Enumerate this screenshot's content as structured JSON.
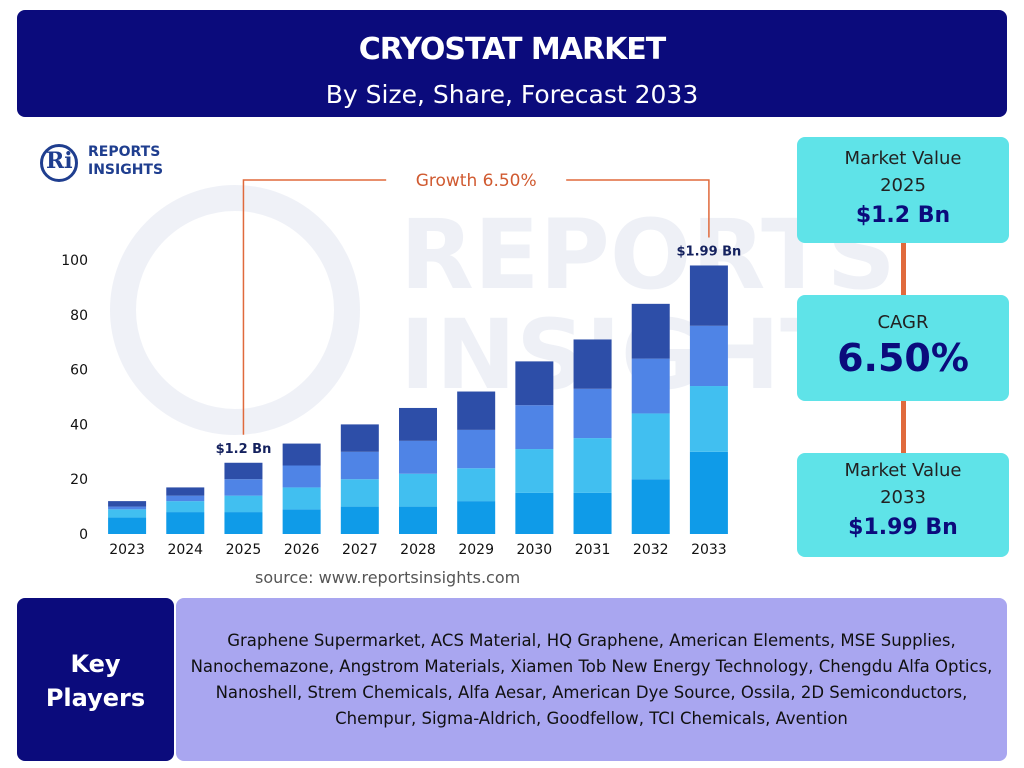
{
  "header": {
    "title": "CRYOSTAT MARKET",
    "subtitle": "By Size, Share, Forecast 2033"
  },
  "logo": {
    "mark": "Ri",
    "line1": "REPORTS",
    "line2": "INSIGHTS"
  },
  "watermark": {
    "line1": "REPORTS",
    "line2": "INSIGHTS"
  },
  "colors": {
    "header_bg": "#0b0b7c",
    "card_bg": "#5fe3e8",
    "connector": "#e06a3c",
    "key_players_bg": "#a9a6f0",
    "growth_text": "#d05a30"
  },
  "chart_data": {
    "type": "bar",
    "stacked": true,
    "categories": [
      "2023",
      "2024",
      "2025",
      "2026",
      "2027",
      "2028",
      "2029",
      "2030",
      "2031",
      "2032",
      "2033"
    ],
    "series": [
      {
        "values": [
          6,
          8,
          8,
          9,
          10,
          10,
          12,
          15,
          15,
          20,
          30
        ],
        "color": "#0f9be8"
      },
      {
        "values": [
          3,
          4,
          6,
          8,
          10,
          12,
          12,
          16,
          20,
          24,
          24
        ],
        "color": "#41bff0"
      },
      {
        "values": [
          1,
          2,
          6,
          8,
          10,
          12,
          14,
          16,
          18,
          20,
          22
        ],
        "color": "#4f84e6"
      },
      {
        "values": [
          2,
          3,
          6,
          8,
          10,
          12,
          14,
          16,
          18,
          20,
          22
        ],
        "color": "#2d4ea8"
      }
    ],
    "ylim": [
      0,
      100
    ],
    "yticks": [
      0,
      20,
      40,
      60,
      80,
      100
    ],
    "annotations": [
      {
        "category": "2025",
        "label": "$1.2 Bn"
      },
      {
        "category": "2033",
        "label": "$1.99 Bn"
      }
    ],
    "growth_label": "Growth  6.50%",
    "grid": false
  },
  "source": "source: www.reportsinsights.com",
  "cards": {
    "value2025": {
      "label1": "Market Value",
      "label2": "2025",
      "value": "$1.2 Bn"
    },
    "cagr": {
      "label": "CAGR",
      "value": "6.50%"
    },
    "value2033": {
      "label1": "Market Value",
      "label2": "2033",
      "value": "$1.99 Bn"
    }
  },
  "key_players": {
    "title1": "Key",
    "title2": "Players",
    "text": "Graphene Supermarket, ACS Material, HQ Graphene, American Elements, MSE Supplies, Nanochemazone, Angstrom Materials, Xiamen Tob New Energy Technology, Chengdu Alfa Optics, Nanoshell, Strem Chemicals, Alfa Aesar, American Dye Source, Ossila, 2D Semiconductors, Chempur, Sigma-Aldrich, Goodfellow, TCI Chemicals, Avention"
  }
}
